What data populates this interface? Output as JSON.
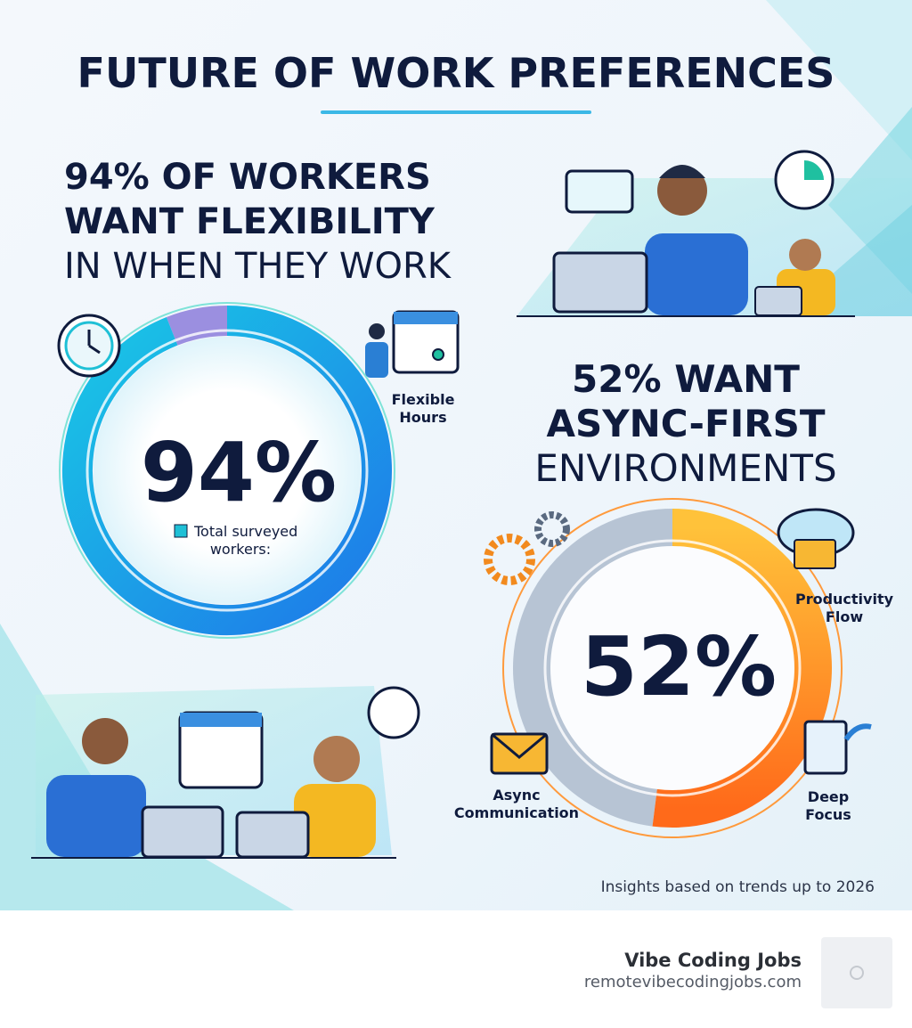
{
  "title": "FUTURE OF WORK PREFERENCES",
  "stat_1": {
    "heading": [
      "94% OF WORKERS",
      "WANT FLEXIBILITY",
      "IN WHEN THEY WORK"
    ],
    "value": 94,
    "value_label": "94%",
    "icon_label": [
      "Flexible",
      "Hours"
    ],
    "legend": [
      "Total surveyed",
      "workers:"
    ]
  },
  "stat_2": {
    "heading": [
      "52% WANT",
      "ASYNC-FIRST",
      "ENVIRONMENTS"
    ],
    "value": 52,
    "value_label": "52%",
    "productivity_label": [
      "Productivity",
      "Flow"
    ],
    "async_label": [
      "Async",
      "Communication"
    ],
    "focus_label": [
      "Deep",
      "Focus"
    ]
  },
  "footnote": "Insights based on trends up to 2026",
  "brand": {
    "name": "Vibe Coding Jobs",
    "url": "remotevibecodingjobs.com"
  }
}
